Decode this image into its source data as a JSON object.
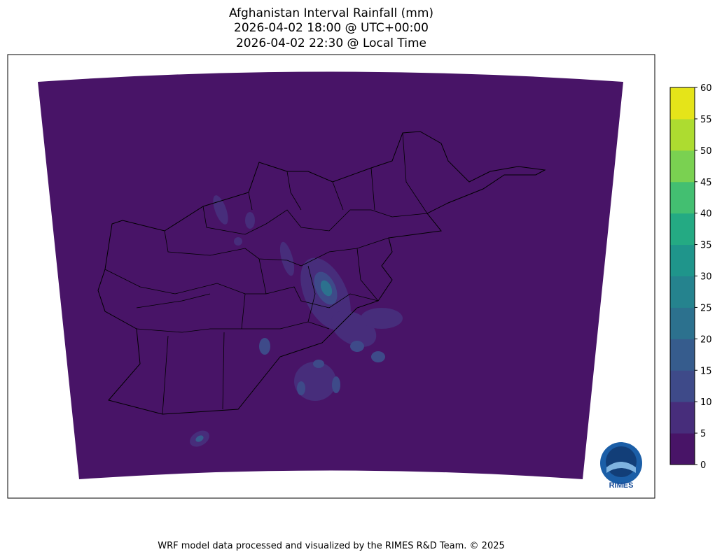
{
  "title": {
    "line1": "Afghanistan Interval Rainfall (mm)",
    "line2": "2026-04-02 18:00 @ UTC+00:00",
    "line3": "2026-04-02 22:30 @ Local Time"
  },
  "colorbar": {
    "ticks": [
      "0",
      "5",
      "10",
      "15",
      "20",
      "25",
      "30",
      "35",
      "40",
      "45",
      "50",
      "55",
      "60"
    ],
    "colors": [
      "#481467",
      "#472d7b",
      "#3e4a89",
      "#365c8d",
      "#2c718e",
      "#25838e",
      "#1f958b",
      "#24aa83",
      "#43bf71",
      "#7ad151",
      "#addc30",
      "#e5e419"
    ]
  },
  "map": {
    "background_color": "#481467",
    "border_color": "#000000"
  },
  "logo": {
    "text": "RIMES"
  },
  "footer": "WRF model data processed and visualized by the RIMES R&D Team. © 2025"
}
